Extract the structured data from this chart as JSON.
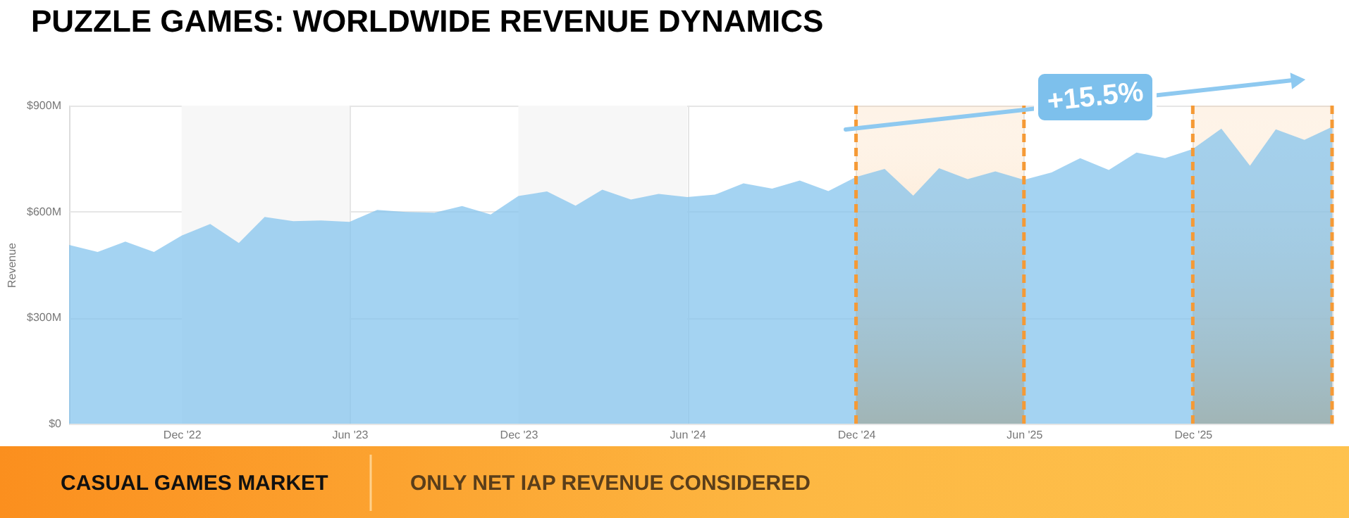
{
  "chart_data": {
    "type": "area",
    "title": "PUZZLE GAMES: WORLDWIDE REVENUE  DYNAMICS",
    "ylabel": "Revenue",
    "x": [
      "2022-08",
      "2022-09",
      "2022-10",
      "2022-11",
      "2022-12",
      "2023-01",
      "2023-02",
      "2023-03",
      "2023-04",
      "2023-05",
      "2023-06",
      "2023-07",
      "2023-08",
      "2023-09",
      "2023-10",
      "2023-11",
      "2023-12",
      "2024-01",
      "2024-02",
      "2024-03",
      "2024-04",
      "2024-05",
      "2024-06",
      "2024-07",
      "2024-08",
      "2024-09",
      "2024-10",
      "2024-11",
      "2024-12",
      "2025-01",
      "2025-02",
      "2025-03",
      "2025-04",
      "2025-05",
      "2025-06",
      "2025-07",
      "2025-08",
      "2025-09",
      "2025-10",
      "2025-11",
      "2025-12",
      "2026-01",
      "2026-02",
      "2026-03",
      "2026-04",
      "2026-05"
    ],
    "series": [
      {
        "color": "#7dc0ec",
        "values": [
          506,
          486,
          515,
          486,
          532,
          565,
          511,
          585,
          573,
          575,
          571,
          605,
          599,
          597,
          616,
          592,
          644,
          657,
          617,
          662,
          634,
          650,
          641,
          648,
          680,
          665,
          688,
          658,
          698,
          721,
          645,
          723,
          692,
          714,
          690,
          711,
          751,
          718,
          767,
          751,
          777,
          835,
          730,
          833,
          803,
          840
        ]
      }
    ],
    "xlim": [
      "2022-08",
      "2026-05"
    ],
    "xticks": [
      {
        "value": "2022-12",
        "label": "Dec '22"
      },
      {
        "value": "2023-06",
        "label": "Jun '23"
      },
      {
        "value": "2023-12",
        "label": "Dec '23"
      },
      {
        "value": "2024-06",
        "label": "Jun '24"
      },
      {
        "value": "2024-12",
        "label": "Dec '24"
      },
      {
        "value": "2025-06",
        "label": "Jun '25"
      },
      {
        "value": "2025-12",
        "label": "Dec '25"
      }
    ],
    "ylim": [
      0,
      900
    ],
    "yticks": [
      {
        "value": 0,
        "label": "$0"
      },
      {
        "value": 300,
        "label": "$300M"
      },
      {
        "value": 600,
        "label": "$600M"
      },
      {
        "value": 900,
        "label": "$900M"
      }
    ],
    "bands": [
      {
        "axis": "x",
        "from": "2022-12",
        "to": "2023-06",
        "color": "#f7f7f7"
      },
      {
        "axis": "x",
        "from": "2023-12",
        "to": "2024-06",
        "color": "#f7f7f7"
      },
      {
        "axis": "x",
        "from": "2024-12",
        "to": "2025-06",
        "color": "#f59a36"
      },
      {
        "axis": "x",
        "from": "2025-12",
        "to": "2026-05",
        "color": "#f59a36"
      }
    ],
    "annotations": [
      "+15.5%",
      "CASUAL GAMES MARKET",
      "ONLY NET IAP REVENUE CONSIDERED"
    ],
    "grid": true
  }
}
